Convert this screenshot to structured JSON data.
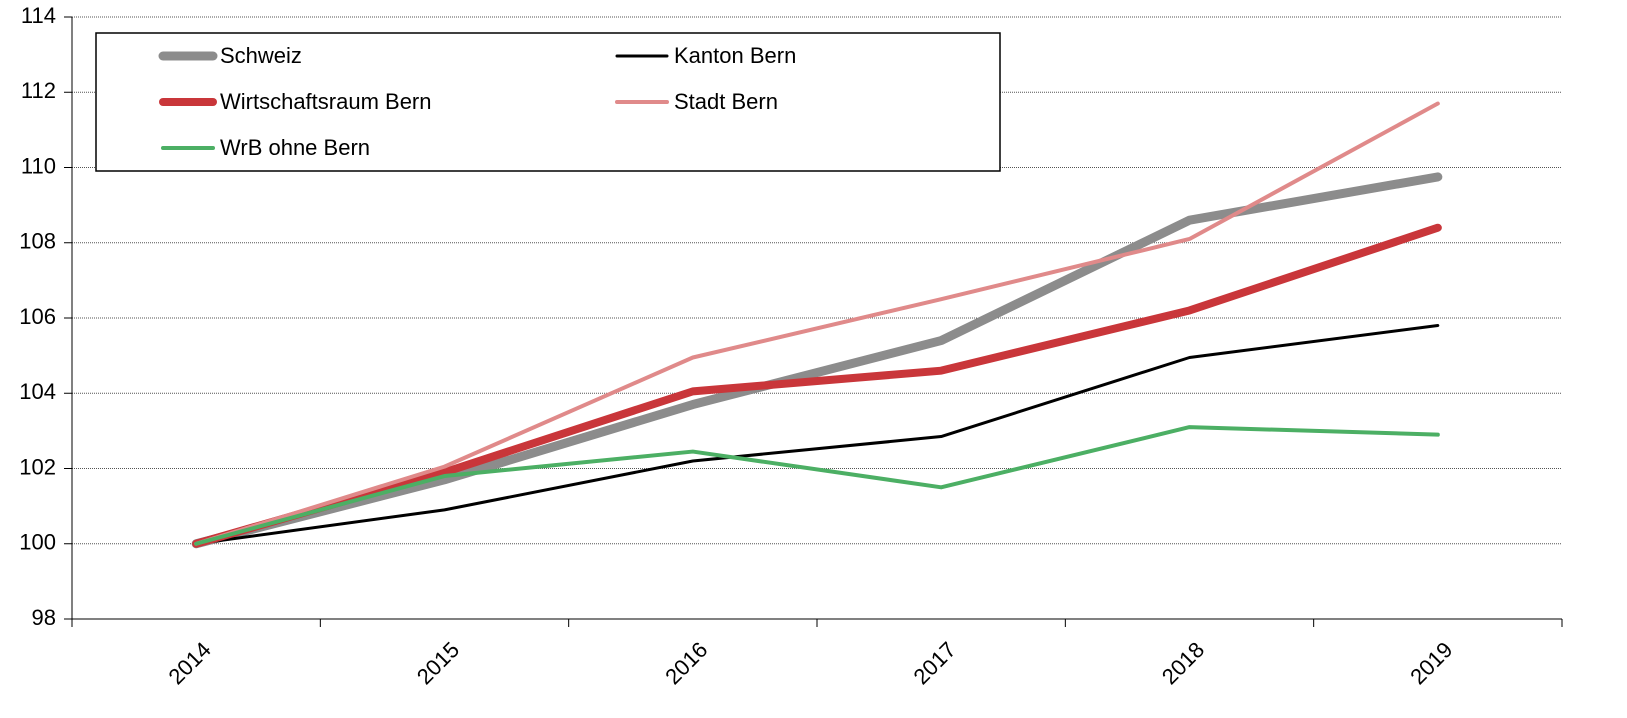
{
  "chart_data": {
    "type": "line",
    "categories": [
      "2014",
      "2015",
      "2016",
      "2017",
      "2018",
      "2019"
    ],
    "series": [
      {
        "name": "Schweiz",
        "color": "#8c8c8c",
        "values": [
          100,
          101.7,
          103.7,
          105.4,
          108.6,
          109.75
        ]
      },
      {
        "name": "Kanton Bern",
        "color": "#000000",
        "values": [
          100,
          100.9,
          102.2,
          102.85,
          104.95,
          105.8
        ]
      },
      {
        "name": "Wirtschaftsraum Bern",
        "color": "#c9363a",
        "values": [
          100,
          101.9,
          104.05,
          104.6,
          106.2,
          108.4
        ]
      },
      {
        "name": "Stadt Bern",
        "color": "#e08a8a",
        "values": [
          100,
          102.05,
          104.95,
          106.5,
          108.1,
          111.7
        ]
      },
      {
        "name": "WrB ohne Bern",
        "color": "#4caf64",
        "values": [
          100,
          101.8,
          102.45,
          101.5,
          103.1,
          102.9
        ]
      }
    ],
    "ylim": [
      98,
      114
    ],
    "yticks": [
      98,
      100,
      102,
      104,
      106,
      108,
      110,
      112,
      114
    ],
    "grid": true,
    "legend": "upper left"
  }
}
